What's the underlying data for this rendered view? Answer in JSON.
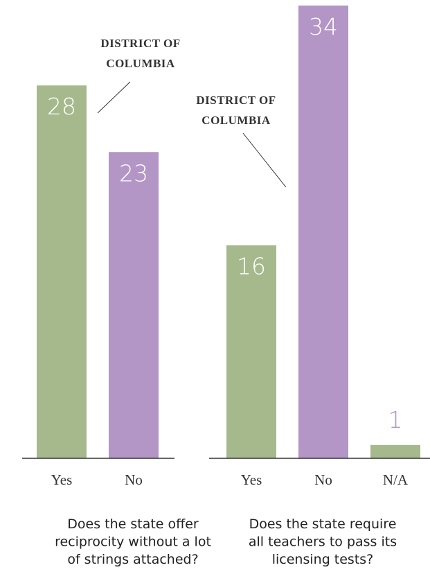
{
  "chart_data": [
    {
      "type": "bar",
      "title": [
        "Does the state offer",
        "reciprocity without a lot",
        "of strings attached?"
      ],
      "categories": [
        "Yes",
        "No"
      ],
      "values": [
        28,
        23
      ],
      "colors": [
        "#a6b98d",
        "#b395c6"
      ],
      "annotation": [
        "DISTRICT OF",
        "COLUMBIA"
      ]
    },
    {
      "type": "bar",
      "title": [
        "Does the state require",
        "all teachers to pass its",
        "licensing tests?"
      ],
      "categories": [
        "Yes",
        "No",
        "N/A"
      ],
      "values": [
        16,
        34,
        1
      ],
      "colors": [
        "#a6b98d",
        "#b395c6",
        "#a6b98d"
      ],
      "annotation": [
        "DISTRICT OF",
        "COLUMBIA"
      ]
    }
  ]
}
